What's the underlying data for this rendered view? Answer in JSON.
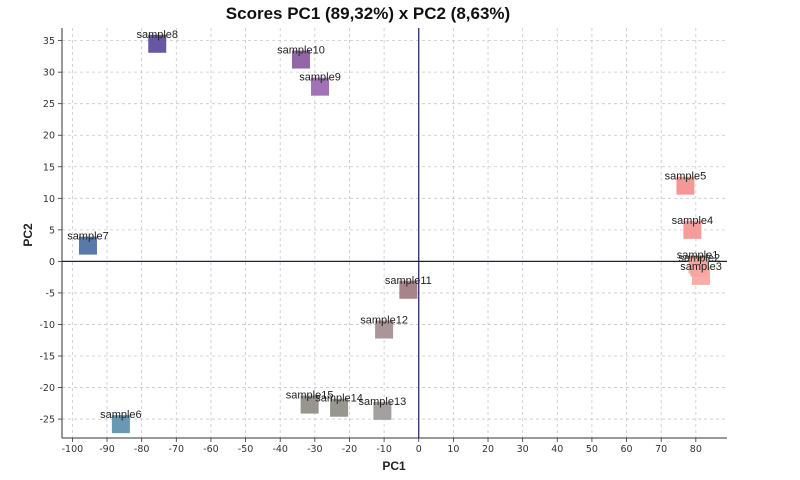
{
  "chart_data": {
    "type": "scatter",
    "title": "Scores PC1 (89,32%) x PC2 (8,63%)",
    "xlabel": "PC1",
    "ylabel": "PC2",
    "xlim": [
      -103,
      89
    ],
    "ylim": [
      -28,
      37
    ],
    "xticks": [
      -100,
      -90,
      -80,
      -70,
      -60,
      -50,
      -40,
      -30,
      -20,
      -10,
      0,
      10,
      20,
      30,
      40,
      50,
      60,
      70,
      80
    ],
    "yticks": [
      35,
      30,
      25,
      20,
      15,
      10,
      5,
      0,
      -5,
      -10,
      -15,
      -20,
      -25
    ],
    "grid": true,
    "points": [
      {
        "label": "sample1",
        "x": 80.5,
        "y": -0.5,
        "color": "#f7a6a2"
      },
      {
        "label": "sample2",
        "x": 81.0,
        "y": -1.0,
        "color": "#f5a3a0"
      },
      {
        "label": "sample3",
        "x": 81.5,
        "y": -2.3,
        "color": "#f7a6a2"
      },
      {
        "label": "sample4",
        "x": 79.0,
        "y": 5.0,
        "color": "#f39593"
      },
      {
        "label": "sample5",
        "x": 77.0,
        "y": 12.0,
        "color": "#f38e90"
      },
      {
        "label": "sample6",
        "x": -86.0,
        "y": -25.8,
        "color": "#5b8fae"
      },
      {
        "label": "sample7",
        "x": -95.5,
        "y": 2.5,
        "color": "#4a6fa3"
      },
      {
        "label": "sample8",
        "x": -75.5,
        "y": 34.5,
        "color": "#5c4a99"
      },
      {
        "label": "sample9",
        "x": -28.5,
        "y": 27.7,
        "color": "#9b65b0"
      },
      {
        "label": "sample10",
        "x": -34.0,
        "y": 32.0,
        "color": "#8a5aa0"
      },
      {
        "label": "sample11",
        "x": -3.0,
        "y": -4.5,
        "color": "#a07880"
      },
      {
        "label": "sample12",
        "x": -10.0,
        "y": -10.8,
        "color": "#a38c8e"
      },
      {
        "label": "sample13",
        "x": -10.5,
        "y": -23.7,
        "color": "#9c9898"
      },
      {
        "label": "sample14",
        "x": -23.0,
        "y": -23.2,
        "color": "#8f8e86"
      },
      {
        "label": "sample15",
        "x": -31.5,
        "y": -22.7,
        "color": "#8e8c84"
      }
    ],
    "reference_line_color": "#1a1a66"
  }
}
